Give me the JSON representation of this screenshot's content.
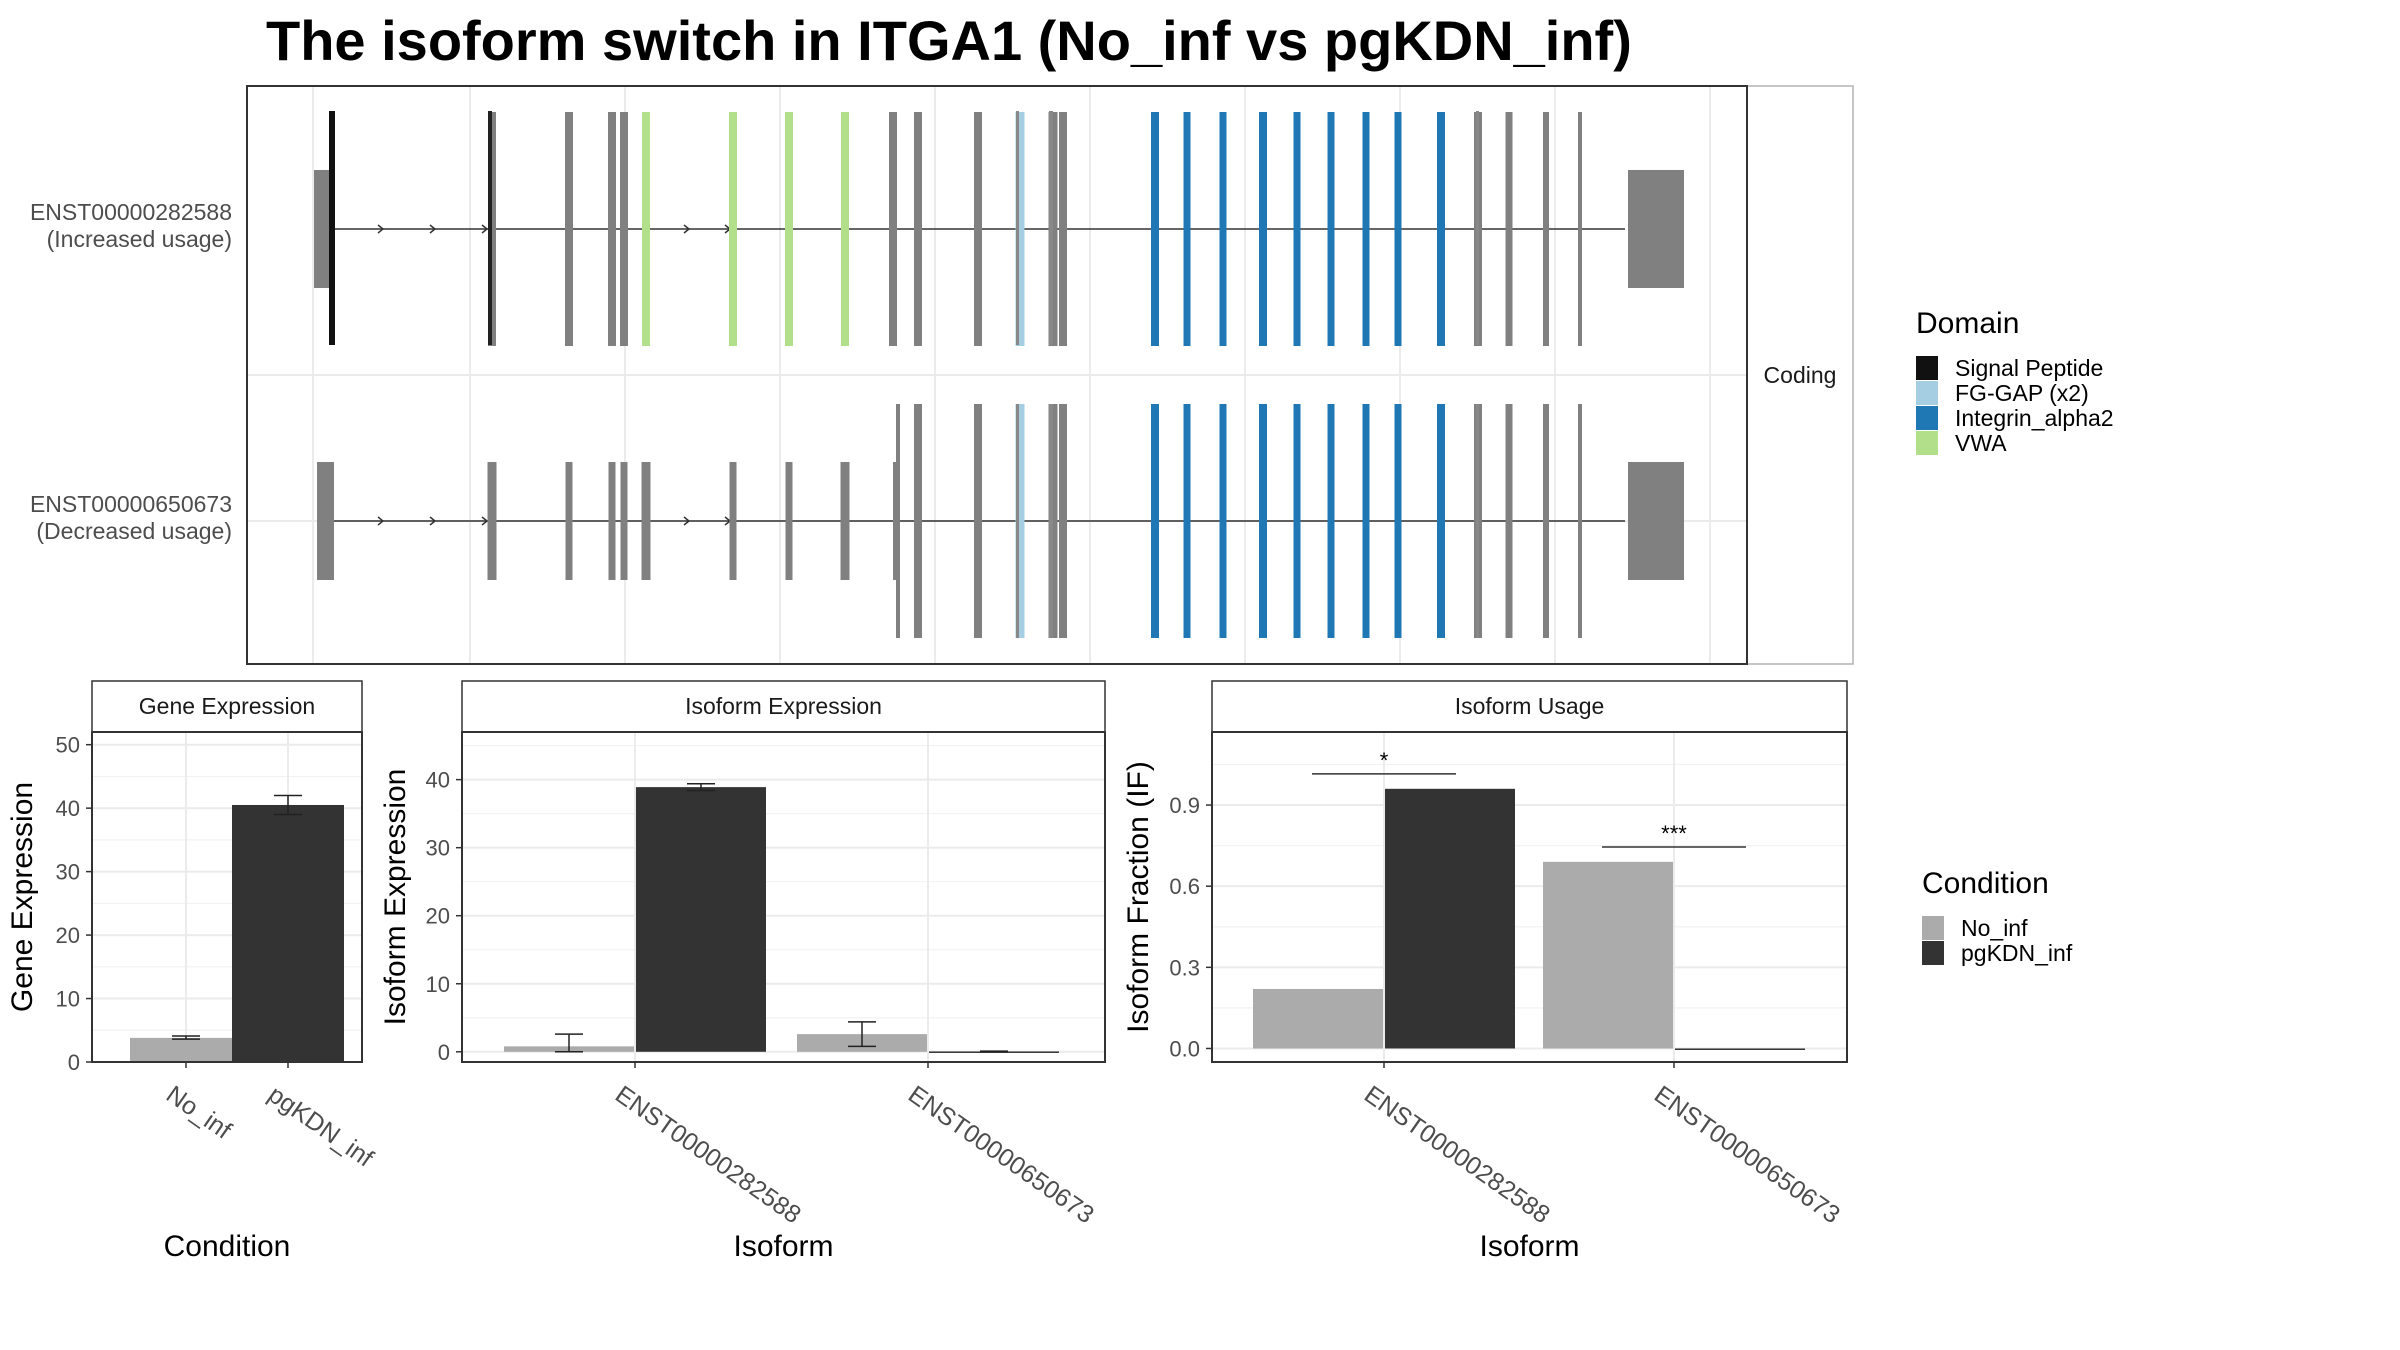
{
  "title": "The isoform switch in ITGA1 (No_inf vs pgKDN_inf)",
  "colors": {
    "no_inf": "#ABABAB",
    "pgkdn_inf": "#333333",
    "exon": "#808080",
    "signal_peptide": "#111111",
    "fg_gap": "#A6CEE3",
    "integrin_alpha2": "#1F78B4",
    "vwa": "#B2DF8A"
  },
  "structure": {
    "strip_label": "Coding",
    "transcripts": [
      {
        "id": "ENST00000282588",
        "label": "ENST00000282588",
        "usage": "(Increased usage)"
      },
      {
        "id": "ENST00000650673",
        "label": "ENST00000650673",
        "usage": "(Decreased usage)"
      }
    ]
  },
  "legends": {
    "domain": {
      "title": "Domain",
      "items": [
        {
          "label": "Signal Peptide",
          "color": "#111111"
        },
        {
          "label": "FG-GAP (x2)",
          "color": "#A6CEE3"
        },
        {
          "label": "Integrin_alpha2",
          "color": "#1F78B4"
        },
        {
          "label": "VWA",
          "color": "#B2DF8A"
        }
      ]
    },
    "condition": {
      "title": "Condition",
      "items": [
        {
          "label": "No_inf",
          "color": "#ABABAB"
        },
        {
          "label": "pgKDN_inf",
          "color": "#333333"
        }
      ]
    }
  },
  "chart_data": [
    {
      "type": "bar",
      "title": "Gene Expression",
      "xlabel": "Condition",
      "ylabel": "Gene Expression",
      "categories": [
        "No_inf",
        "pgKDN_inf"
      ],
      "values": [
        3.8,
        40.5
      ],
      "errors": [
        [
          3.6,
          4.1
        ],
        [
          39.0,
          42.0
        ]
      ],
      "ylim": [
        0,
        52
      ],
      "yticks": [
        0,
        10,
        20,
        30,
        40,
        50
      ],
      "grid": true
    },
    {
      "type": "bar",
      "title": "Isoform Expression",
      "xlabel": "Isoform",
      "ylabel": "Isoform Expression",
      "categories": [
        "ENST00000282588",
        "ENST00000650673"
      ],
      "series": [
        {
          "name": "No_inf",
          "values": [
            0.8,
            2.6
          ],
          "errors": [
            [
              0,
              2.6
            ],
            [
              0.8,
              4.4
            ]
          ]
        },
        {
          "name": "pgKDN_inf",
          "values": [
            38.9,
            0.05
          ],
          "errors": [
            [
              38.4,
              39.4
            ],
            [
              0,
              0.1
            ]
          ]
        }
      ],
      "ylim": [
        -1.5,
        47
      ],
      "yticks": [
        0,
        10,
        20,
        30,
        40
      ],
      "grid": true
    },
    {
      "type": "bar",
      "title": "Isoform Usage",
      "xlabel": "Isoform",
      "ylabel": "Isoform Fraction (IF)",
      "categories": [
        "ENST00000282588",
        "ENST00000650673"
      ],
      "series": [
        {
          "name": "No_inf",
          "values": [
            0.22,
            0.69
          ]
        },
        {
          "name": "pgKDN_inf",
          "values": [
            0.96,
            0.0
          ]
        }
      ],
      "annotations": [
        "*",
        "***"
      ],
      "ylim": [
        -0.05,
        1.17
      ],
      "yticks": [
        0.0,
        0.3,
        0.6,
        0.9
      ],
      "ytick_labels": [
        "0.0",
        "0.3",
        "0.6",
        "0.9"
      ],
      "grid": true
    }
  ]
}
